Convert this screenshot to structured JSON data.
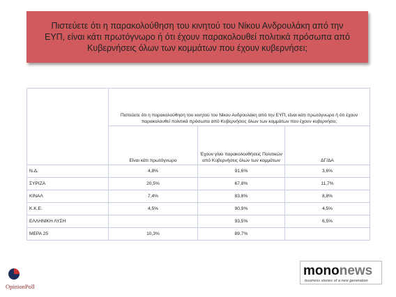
{
  "header": {
    "title": "Πιστεύετε ότι η παρακολούθηση του κινητού του Νίκου Ανδρουλάκη από την ΕΥΠ, είναι κάτι πρωτόγνωρο ή ότι έχουν παρακολουθεί πολιτικά πρόσωπα από Κυβερνήσεις όλων των κομμάτων που έχουν κυβερνήσει;"
  },
  "table": {
    "question": "Πιστεύετε ότι η παρακολούθηση του κινητού του Νίκου Ανδρουλάκη από την ΕΥΠ, είναι κάτι πρωτόγνωρο ή ότι έχουν παρακολουθεί πολιτικά πρόσωπα από Κυβερνήσεις όλων των κομμάτων που έχουν κυβερνήσει;",
    "columns": [
      "Είναι κάτι πρωτόγνωρο",
      "Έχουν γίνει παρακολουθήσεις Πολιτικών από Κυβερνήσεις όλων των κομμάτων",
      "ΔΓ/ΔΑ"
    ],
    "rows": [
      [
        "Ν.Δ.",
        "4,8%",
        "91,6%",
        "3,6%"
      ],
      [
        "ΣΥΡΙΖΑ",
        "20,5%",
        "67,8%",
        "11,7%"
      ],
      [
        "ΚΙΝΑΛ",
        "7,4%",
        "83,8%",
        "8,8%"
      ],
      [
        "Κ.Κ.Ε.",
        "4,5%",
        "90,9%",
        "4,5%"
      ],
      [
        "ΕΛΛΗΝΙΚΗ ΛΥΣΗ",
        null,
        "93,5%",
        "6,5%"
      ],
      [
        "ΜΕΡΑ 25",
        "10,3%",
        "89,7%",
        null
      ]
    ]
  },
  "logos": {
    "left": "OpinionPoll",
    "right_a": "mono",
    "right_b": "news",
    "right_tagline": "business stories of a new generation"
  }
}
